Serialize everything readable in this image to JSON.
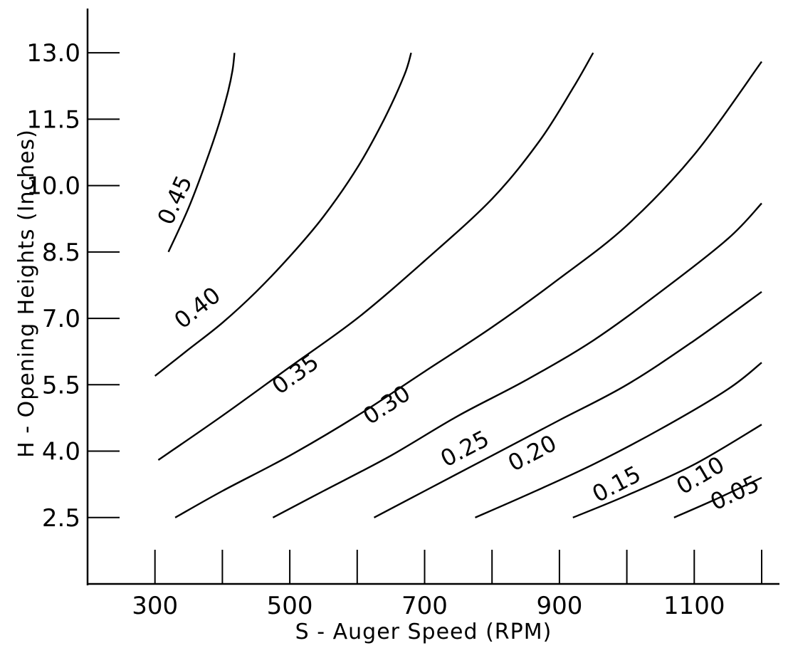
{
  "chart_data": {
    "type": "line",
    "chart_kind": "contour",
    "title": "",
    "xlabel": "S - Auger Speed (RPM)",
    "ylabel": "H - Opening Heights (Inches)",
    "xlim": [
      200,
      1200
    ],
    "ylim": [
      1.0,
      14.0
    ],
    "x_ticks": [
      300,
      400,
      500,
      600,
      700,
      800,
      900,
      1000,
      1100,
      1200
    ],
    "x_tick_labels": [
      "300",
      "500",
      "700",
      "900",
      "1100"
    ],
    "x_tick_label_values": [
      300,
      500,
      700,
      900,
      1100
    ],
    "y_ticks": [
      2.5,
      4.0,
      5.5,
      7.0,
      8.5,
      10.0,
      11.5,
      13.0
    ],
    "y_tick_labels": [
      "2.5",
      "4.0",
      "5.5",
      "7.0",
      "8.5",
      "10.0",
      "11.5",
      "13.0"
    ],
    "grid": false,
    "series": [
      {
        "name": "0.45",
        "x": [
          320,
          350,
          375,
          395,
          408,
          415,
          418
        ],
        "y": [
          8.5,
          9.5,
          10.5,
          11.4,
          12.1,
          12.6,
          13.0
        ]
      },
      {
        "name": "0.40",
        "x": [
          300,
          350,
          400,
          450,
          500,
          550,
          600,
          640,
          670,
          680
        ],
        "y": [
          5.7,
          6.3,
          6.9,
          7.6,
          8.4,
          9.3,
          10.4,
          11.5,
          12.5,
          13.0
        ]
      },
      {
        "name": "0.35",
        "x": [
          305,
          400,
          500,
          600,
          700,
          800,
          870,
          920,
          950
        ],
        "y": [
          3.8,
          4.8,
          5.9,
          7.0,
          8.3,
          9.7,
          11.0,
          12.2,
          13.0
        ]
      },
      {
        "name": "0.30",
        "x": [
          330,
          400,
          500,
          600,
          700,
          800,
          900,
          1000,
          1100,
          1200
        ],
        "y": [
          2.5,
          3.1,
          3.9,
          4.8,
          5.8,
          6.8,
          7.9,
          9.1,
          10.7,
          12.8
        ]
      },
      {
        "name": "0.25",
        "x": [
          475,
          550,
          650,
          750,
          850,
          950,
          1050,
          1150,
          1200
        ],
        "y": [
          2.5,
          3.1,
          3.9,
          4.8,
          5.6,
          6.5,
          7.6,
          8.8,
          9.6
        ]
      },
      {
        "name": "0.20",
        "x": [
          625,
          700,
          800,
          900,
          1000,
          1100,
          1200
        ],
        "y": [
          2.5,
          3.1,
          3.9,
          4.7,
          5.5,
          6.5,
          7.6
        ]
      },
      {
        "name": "0.15",
        "x": [
          775,
          850,
          950,
          1050,
          1150,
          1200
        ],
        "y": [
          2.5,
          3.0,
          3.7,
          4.5,
          5.4,
          6.0
        ]
      },
      {
        "name": "0.10",
        "x": [
          920,
          1000,
          1100,
          1200
        ],
        "y": [
          2.5,
          3.0,
          3.7,
          4.6
        ]
      },
      {
        "name": "0.05",
        "x": [
          1070,
          1130,
          1200
        ],
        "y": [
          2.5,
          2.9,
          3.4
        ]
      }
    ],
    "annotations": [
      {
        "text": "0.45",
        "x": 340,
        "y": 9.6
      },
      {
        "text": "0.40",
        "x": 370,
        "y": 7.1
      },
      {
        "text": "0.35",
        "x": 515,
        "y": 5.6
      },
      {
        "text": "0.30",
        "x": 650,
        "y": 4.9
      },
      {
        "text": "0.25",
        "x": 765,
        "y": 3.9
      },
      {
        "text": "0.20",
        "x": 865,
        "y": 3.8
      },
      {
        "text": "0.15",
        "x": 990,
        "y": 3.1
      },
      {
        "text": "0.10",
        "x": 1115,
        "y": 3.3
      },
      {
        "text": "0.05",
        "x": 1165,
        "y": 2.9
      }
    ]
  }
}
